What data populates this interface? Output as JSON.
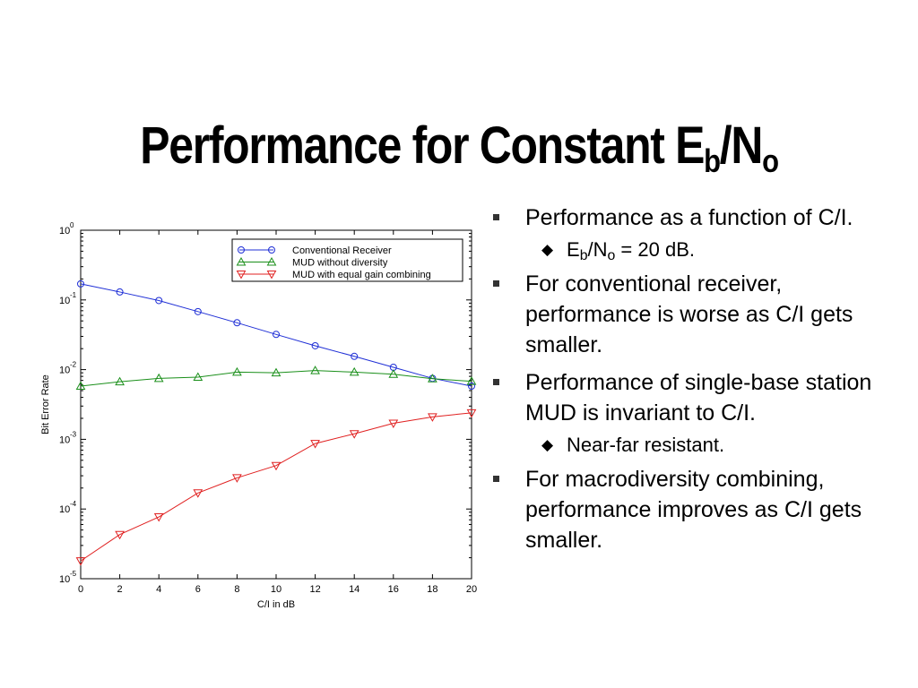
{
  "slide": {
    "title": {
      "main": "Performance for Constant E",
      "sub1": "b",
      "mid": "/N",
      "sub2": "o"
    }
  },
  "chart_data": {
    "type": "line",
    "xlabel": "C/I in dB",
    "ylabel": "Bit Error Rate",
    "yscale": "log",
    "xlim": [
      0,
      20
    ],
    "ylim": [
      1e-05,
      1
    ],
    "x_ticks": [
      "0",
      "2",
      "4",
      "6",
      "8",
      "10",
      "12",
      "14",
      "16",
      "18",
      "20"
    ],
    "y_ticks": [
      {
        "base": "10",
        "exp": "0"
      },
      {
        "base": "10",
        "exp": "-1"
      },
      {
        "base": "10",
        "exp": "-2"
      },
      {
        "base": "10",
        "exp": "-3"
      },
      {
        "base": "10",
        "exp": "-4"
      },
      {
        "base": "10",
        "exp": "-5"
      }
    ],
    "grid": false,
    "legend_position": "top-right",
    "x": [
      0,
      2,
      4,
      6,
      8,
      10,
      12,
      14,
      16,
      18,
      20
    ],
    "series": [
      {
        "name": "Conventional Receiver",
        "color": "#1f2fd6",
        "marker": "circle",
        "values": [
          0.17,
          0.13,
          0.098,
          0.068,
          0.047,
          0.032,
          0.022,
          0.0155,
          0.0108,
          0.0075,
          0.0058
        ]
      },
      {
        "name": "MUD without diversity",
        "color": "#1a8f1a",
        "marker": "triangle-up",
        "values": [
          0.0058,
          0.0067,
          0.0075,
          0.0078,
          0.0092,
          0.009,
          0.0097,
          0.0092,
          0.0086,
          0.0074,
          0.0068
        ]
      },
      {
        "name": "MUD with equal gain combining",
        "color": "#e02020",
        "marker": "triangle-down",
        "values": [
          1.8e-05,
          4.3e-05,
          7.7e-05,
          0.00017,
          0.00028,
          0.00042,
          0.00087,
          0.0012,
          0.0017,
          0.0021,
          0.0024
        ]
      }
    ]
  },
  "bullets": [
    {
      "level": 1,
      "marker": "square-bullet",
      "parts": [
        {
          "t": "Performance as a function of C/I."
        }
      ]
    },
    {
      "level": 2,
      "marker": "diamond-bullet",
      "parts": [
        {
          "t": "E"
        },
        {
          "t": "b",
          "sub": true
        },
        {
          "t": "/N"
        },
        {
          "t": "o",
          "sub": true
        },
        {
          "t": " = 20 dB."
        }
      ]
    },
    {
      "level": 1,
      "marker": "square-bullet",
      "parts": [
        {
          "t": "For conventional receiver, performance is worse as C/I gets smaller."
        }
      ]
    },
    {
      "level": 1,
      "marker": "square-bullet",
      "parts": [
        {
          "t": "Performance of single-base station MUD is invariant to C/I."
        }
      ]
    },
    {
      "level": 2,
      "marker": "diamond-bullet",
      "parts": [
        {
          "t": "Near-far resistant."
        }
      ]
    },
    {
      "level": 1,
      "marker": "square-bullet",
      "parts": [
        {
          "t": "For macrodiversity combining, performance improves as C/I gets smaller."
        }
      ]
    }
  ]
}
